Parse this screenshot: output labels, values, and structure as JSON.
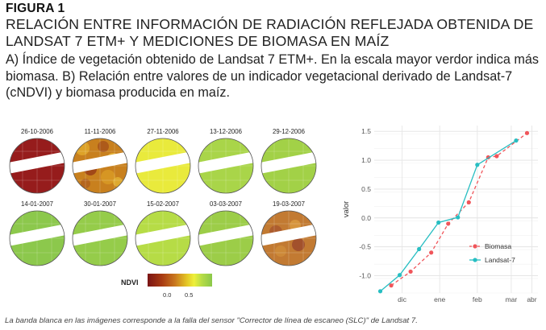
{
  "figure": {
    "label": "FIGURA 1",
    "title": "RELACIÓN ENTRE INFORMACIÓN DE RADIACIÓN REFLEJADA OBTENIDA DE LANDSAT 7 ETM+ Y MEDICIONES DE BIOMASA EN MAÍZ",
    "description": "A) Índice de vegetación obtenido de Landsat 7 ETM+. En la escala mayor verdor indica más biomasa. B) Relación entre valores de un indicador vegetacional derivado de Landsat-7 (cNDVI) y biomasa producida en maíz.",
    "caption": "La banda blanca en las imágenes corresponde a la falla del sensor \"Corrector de línea de escaneo (SLC)\" de Landsat 7."
  },
  "panel_a": {
    "legend_title": "NDVI",
    "legend_ticks": [
      "0.0",
      "0.5"
    ],
    "colors": {
      "dark_red": "#8f1a1a",
      "orange": "#c8761e",
      "yellow": "#e8ea3a",
      "light_green": "#a9d84a",
      "green": "#8ac84a"
    },
    "tiles": [
      {
        "date": "26-10-2006",
        "color": "#961c1c",
        "pattern": "solid"
      },
      {
        "date": "11-11-2006",
        "color": "#c8801e",
        "pattern": "mottled"
      },
      {
        "date": "27-11-2006",
        "color": "#e9ea3c",
        "pattern": "solid"
      },
      {
        "date": "13-12-2006",
        "color": "#a9d549",
        "pattern": "solid"
      },
      {
        "date": "29-12-2006",
        "color": "#a2d147",
        "pattern": "solid"
      },
      {
        "date": "14-01-2007",
        "color": "#8cc84c",
        "pattern": "solid"
      },
      {
        "date": "30-01-2007",
        "color": "#95cc4a",
        "pattern": "solid"
      },
      {
        "date": "15-02-2007",
        "color": "#b6dc46",
        "pattern": "solid"
      },
      {
        "date": "03-03-2007",
        "color": "#9ccd48",
        "pattern": "solid"
      },
      {
        "date": "19-03-2007",
        "color": "#c27a32",
        "pattern": "mottled-brown"
      }
    ]
  },
  "chart_data": {
    "type": "line",
    "xlabel": "",
    "ylabel": "valor",
    "x_ticks": [
      "dic",
      "ene",
      "feb",
      "mar",
      "abr"
    ],
    "ylim": [
      -1.3,
      1.6
    ],
    "y_ticks": [
      -1.0,
      -0.5,
      0.0,
      0.5,
      1.0,
      1.5
    ],
    "grid": true,
    "legend_position": "bottom-right",
    "series": [
      {
        "name": "Biomasa",
        "color": "#f0555a",
        "dash": true,
        "x": [
          "2006-12-06",
          "2006-12-22",
          "2007-01-08",
          "2007-01-22",
          "2007-02-08",
          "2007-02-24",
          "2007-03-03",
          "2007-03-28"
        ],
        "y": [
          -1.17,
          -0.93,
          -0.6,
          -0.1,
          0.27,
          1.05,
          1.07,
          1.47
        ]
      },
      {
        "name": "Landsat-7",
        "color": "#27bec2",
        "dash": false,
        "x": [
          "2006-11-27",
          "2006-12-13",
          "2006-12-29",
          "2007-01-14",
          "2007-01-30",
          "2007-02-15",
          "2007-03-19"
        ],
        "y": [
          -1.27,
          -0.99,
          -0.54,
          -0.08,
          0.01,
          0.92,
          1.34
        ]
      }
    ]
  }
}
